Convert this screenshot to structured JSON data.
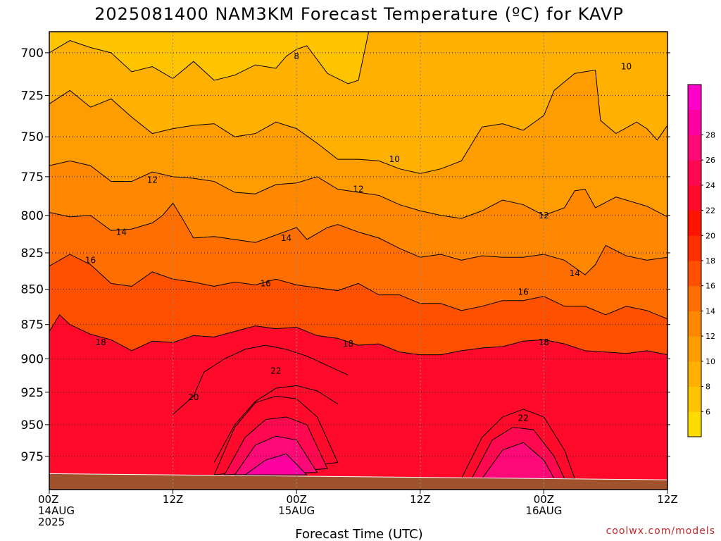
{
  "chart_data": {
    "type": "heatmap",
    "title": "2025081400 NAM3KM Forecast Temperature (ºC) for KAVP",
    "xlabel": "Forecast Time (UTC)",
    "credit": "coolwx.com/models",
    "y_ticks": [
      700,
      725,
      750,
      775,
      800,
      825,
      850,
      875,
      900,
      925,
      950,
      975
    ],
    "ylim": [
      1002,
      688
    ],
    "y_scale": "log-pressure",
    "x_ticks": [
      {
        "hour": 0,
        "line1": "00Z",
        "line2": "14AUG",
        "line3": "2025"
      },
      {
        "hour": 12,
        "line1": "12Z",
        "line2": "",
        "line3": ""
      },
      {
        "hour": 24,
        "line1": "00Z",
        "line2": "15AUG",
        "line3": ""
      },
      {
        "hour": 36,
        "line1": "12Z",
        "line2": "",
        "line3": ""
      },
      {
        "hour": 48,
        "line1": "00Z",
        "line2": "16AUG",
        "line3": ""
      },
      {
        "hour": 60,
        "line1": "12Z",
        "line2": "",
        "line3": ""
      }
    ],
    "xlim": [
      0,
      60
    ],
    "grid": true,
    "colorbar": {
      "levels": [
        4,
        6,
        8,
        10,
        12,
        14,
        16,
        18,
        20,
        22,
        24,
        26,
        28,
        30
      ],
      "tick_labels": [
        6,
        8,
        10,
        12,
        14,
        16,
        18,
        20,
        22,
        24,
        26,
        28
      ],
      "colors": [
        "#ffdc00",
        "#ffc400",
        "#ffb000",
        "#ff9c00",
        "#ff8800",
        "#ff6e00",
        "#ff5000",
        "#ff3000",
        "#ff1400",
        "#ff0a2a",
        "#ff0850",
        "#ff0878",
        "#ff00a0",
        "#ff00c8"
      ]
    },
    "ground_color": "#a0522d",
    "surface_pressure": [
      {
        "hour": 0,
        "p": 989
      },
      {
        "hour": 12,
        "p": 990
      },
      {
        "hour": 24,
        "p": 991
      },
      {
        "hour": 36,
        "p": 992
      },
      {
        "hour": 48,
        "p": 993
      },
      {
        "hour": 60,
        "p": 994
      }
    ],
    "isotherms": [
      {
        "value": 8,
        "points": [
          [
            0,
            700
          ],
          [
            2,
            693
          ],
          [
            4,
            697
          ],
          [
            6,
            700
          ],
          [
            8,
            711
          ],
          [
            10,
            708
          ],
          [
            12,
            715
          ],
          [
            14,
            705
          ],
          [
            16,
            716
          ],
          [
            18,
            713
          ],
          [
            20,
            707
          ],
          [
            22,
            709
          ],
          [
            23,
            702
          ],
          [
            24,
            698
          ],
          [
            25,
            696
          ],
          [
            27,
            712
          ],
          [
            29,
            718
          ],
          [
            30,
            716
          ],
          [
            31,
            688
          ]
        ]
      },
      {
        "value": 10,
        "points": [
          [
            0,
            730
          ],
          [
            2,
            722
          ],
          [
            4,
            732
          ],
          [
            6,
            727
          ],
          [
            8,
            738
          ],
          [
            10,
            748
          ],
          [
            12,
            745
          ],
          [
            14,
            743
          ],
          [
            16,
            742
          ],
          [
            18,
            750
          ],
          [
            20,
            748
          ],
          [
            22,
            741
          ],
          [
            24,
            745
          ],
          [
            26,
            754
          ],
          [
            28,
            764
          ],
          [
            30,
            764
          ],
          [
            32,
            765
          ],
          [
            34,
            770
          ],
          [
            36,
            773
          ],
          [
            38,
            770
          ],
          [
            40,
            765
          ],
          [
            42,
            744
          ],
          [
            44,
            742
          ],
          [
            46,
            746
          ],
          [
            48,
            737
          ],
          [
            49,
            722
          ],
          [
            51,
            712
          ],
          [
            53,
            710
          ],
          [
            53.5,
            740
          ],
          [
            55,
            748
          ],
          [
            57,
            741
          ],
          [
            58,
            745
          ],
          [
            59,
            752
          ],
          [
            60,
            743
          ]
        ]
      },
      {
        "value": 12,
        "points": [
          [
            0,
            768
          ],
          [
            2,
            765
          ],
          [
            4,
            768
          ],
          [
            6,
            778
          ],
          [
            8,
            778
          ],
          [
            10,
            772
          ],
          [
            12,
            775
          ],
          [
            14,
            776
          ],
          [
            16,
            778
          ],
          [
            18,
            785
          ],
          [
            20,
            786
          ],
          [
            22,
            780
          ],
          [
            24,
            779
          ],
          [
            26,
            775
          ],
          [
            28,
            783
          ],
          [
            30,
            785
          ],
          [
            32,
            787
          ],
          [
            34,
            793
          ],
          [
            36,
            797
          ],
          [
            38,
            800
          ],
          [
            40,
            802
          ],
          [
            42,
            797
          ],
          [
            44,
            790
          ],
          [
            46,
            793
          ],
          [
            48,
            800
          ],
          [
            50,
            795
          ],
          [
            51,
            784
          ],
          [
            52,
            783
          ],
          [
            53,
            795
          ],
          [
            55,
            788
          ],
          [
            57,
            792
          ],
          [
            58,
            794
          ],
          [
            60,
            801
          ]
        ]
      },
      {
        "value": 14,
        "points": [
          [
            0,
            798
          ],
          [
            2,
            801
          ],
          [
            4,
            800
          ],
          [
            6,
            810
          ],
          [
            8,
            809
          ],
          [
            10,
            805
          ],
          [
            11,
            800
          ],
          [
            12,
            792
          ],
          [
            13,
            803
          ],
          [
            14,
            815
          ],
          [
            16,
            814
          ],
          [
            18,
            816
          ],
          [
            20,
            818
          ],
          [
            22,
            813
          ],
          [
            24,
            808
          ],
          [
            25,
            816
          ],
          [
            27,
            808
          ],
          [
            28,
            806
          ],
          [
            30,
            811
          ],
          [
            32,
            815
          ],
          [
            34,
            822
          ],
          [
            36,
            828
          ],
          [
            38,
            826
          ],
          [
            40,
            830
          ],
          [
            42,
            827
          ],
          [
            44,
            828
          ],
          [
            46,
            828
          ],
          [
            48,
            826
          ],
          [
            50,
            830
          ],
          [
            52,
            840
          ],
          [
            53,
            833
          ],
          [
            54,
            820
          ],
          [
            56,
            827
          ],
          [
            58,
            830
          ],
          [
            60,
            828
          ]
        ]
      },
      {
        "value": 16,
        "points": [
          [
            0,
            834
          ],
          [
            2,
            826
          ],
          [
            4,
            833
          ],
          [
            6,
            846
          ],
          [
            8,
            848
          ],
          [
            10,
            838
          ],
          [
            12,
            843
          ],
          [
            14,
            845
          ],
          [
            16,
            848
          ],
          [
            18,
            845
          ],
          [
            20,
            847
          ],
          [
            22,
            843
          ],
          [
            24,
            847
          ],
          [
            26,
            849
          ],
          [
            28,
            851
          ],
          [
            30,
            846
          ],
          [
            32,
            854
          ],
          [
            34,
            854
          ],
          [
            36,
            860
          ],
          [
            38,
            860
          ],
          [
            40,
            865
          ],
          [
            42,
            862
          ],
          [
            44,
            858
          ],
          [
            46,
            858
          ],
          [
            48,
            855
          ],
          [
            50,
            862
          ],
          [
            52,
            862
          ],
          [
            54,
            868
          ],
          [
            56,
            862
          ],
          [
            58,
            865
          ],
          [
            60,
            871
          ]
        ]
      },
      {
        "value": 18,
        "points": [
          [
            0,
            880
          ],
          [
            1,
            868
          ],
          [
            2,
            875
          ],
          [
            4,
            882
          ],
          [
            6,
            886
          ],
          [
            8,
            894
          ],
          [
            10,
            887
          ],
          [
            12,
            888
          ],
          [
            14,
            883
          ],
          [
            16,
            884
          ],
          [
            18,
            880
          ],
          [
            20,
            876
          ],
          [
            22,
            878
          ],
          [
            24,
            877
          ],
          [
            26,
            883
          ],
          [
            28,
            885
          ],
          [
            30,
            890
          ],
          [
            32,
            889
          ],
          [
            34,
            895
          ],
          [
            36,
            897
          ],
          [
            38,
            897
          ],
          [
            40,
            894
          ],
          [
            42,
            892
          ],
          [
            44,
            891
          ],
          [
            46,
            887
          ],
          [
            48,
            886
          ],
          [
            50,
            889
          ],
          [
            52,
            894
          ],
          [
            54,
            895
          ],
          [
            56,
            896
          ],
          [
            58,
            894
          ],
          [
            60,
            897
          ]
        ]
      },
      {
        "value": 20,
        "points": [
          [
            12,
            942
          ],
          [
            14,
            928
          ],
          [
            15,
            910
          ],
          [
            17,
            900
          ],
          [
            19,
            893
          ],
          [
            21,
            890
          ],
          [
            23,
            893
          ],
          [
            25,
            898
          ],
          [
            27,
            905
          ],
          [
            29,
            912
          ]
        ]
      },
      {
        "value": 22,
        "points": [
          [
            16,
            980
          ],
          [
            18,
            950
          ],
          [
            20,
            932
          ],
          [
            22,
            922
          ],
          [
            24,
            920
          ],
          [
            26,
            924
          ],
          [
            28,
            934
          ]
        ]
      }
    ],
    "isotherm_labels": [
      {
        "text": "8",
        "hour": 24,
        "p": 702
      },
      {
        "text": "10",
        "hour": 56,
        "p": 708
      },
      {
        "text": "10",
        "hour": 33.5,
        "p": 764
      },
      {
        "text": "12",
        "hour": 10,
        "p": 777
      },
      {
        "text": "12",
        "hour": 30,
        "p": 783
      },
      {
        "text": "12",
        "hour": 48,
        "p": 800
      },
      {
        "text": "14",
        "hour": 7,
        "p": 811
      },
      {
        "text": "14",
        "hour": 23,
        "p": 815
      },
      {
        "text": "14",
        "hour": 51,
        "p": 839
      },
      {
        "text": "16",
        "hour": 4,
        "p": 830
      },
      {
        "text": "16",
        "hour": 21,
        "p": 846
      },
      {
        "text": "16",
        "hour": 46,
        "p": 852
      },
      {
        "text": "18",
        "hour": 5,
        "p": 888
      },
      {
        "text": "18",
        "hour": 29,
        "p": 889
      },
      {
        "text": "18",
        "hour": 48,
        "p": 888
      },
      {
        "text": "20",
        "hour": 14,
        "p": 929
      },
      {
        "text": "22",
        "hour": 22,
        "p": 909
      },
      {
        "text": "22",
        "hour": 46,
        "p": 945
      }
    ],
    "warm_cores": [
      {
        "hour": 22,
        "top": [
          [
            16,
            990
          ],
          [
            18,
            952
          ],
          [
            20,
            933
          ],
          [
            22,
            928
          ],
          [
            24,
            930
          ],
          [
            26,
            944
          ],
          [
            28,
            980
          ]
        ],
        "fill": "#ff0a2a"
      },
      {
        "hour": 22,
        "top": [
          [
            17,
            990
          ],
          [
            19,
            960
          ],
          [
            21,
            946
          ],
          [
            23,
            944
          ],
          [
            25,
            950
          ],
          [
            27,
            985
          ]
        ],
        "fill": "#ff0850"
      },
      {
        "hour": 22,
        "top": [
          [
            18,
            990
          ],
          [
            20,
            966
          ],
          [
            22,
            959
          ],
          [
            24,
            962
          ],
          [
            26,
            988
          ]
        ],
        "fill": "#ff0878"
      },
      {
        "hour": 22,
        "top": [
          [
            19,
            990
          ],
          [
            21,
            978
          ],
          [
            23,
            973
          ],
          [
            25,
            990
          ]
        ],
        "fill": "#ff00a0"
      },
      {
        "hour": 44,
        "top": [
          [
            40,
            993
          ],
          [
            42,
            960
          ],
          [
            44,
            944
          ],
          [
            46,
            938
          ],
          [
            48,
            944
          ],
          [
            50,
            970
          ],
          [
            51,
            993
          ]
        ],
        "fill": "#ff0a2a"
      },
      {
        "hour": 44,
        "top": [
          [
            41,
            993
          ],
          [
            43,
            962
          ],
          [
            45,
            952
          ],
          [
            47,
            954
          ],
          [
            49,
            975
          ],
          [
            50,
            993
          ]
        ],
        "fill": "#ff0850"
      },
      {
        "hour": 44,
        "top": [
          [
            42,
            993
          ],
          [
            44,
            970
          ],
          [
            46,
            964
          ],
          [
            48,
            978
          ],
          [
            49,
            993
          ]
        ],
        "fill": "#ff0878"
      }
    ]
  }
}
